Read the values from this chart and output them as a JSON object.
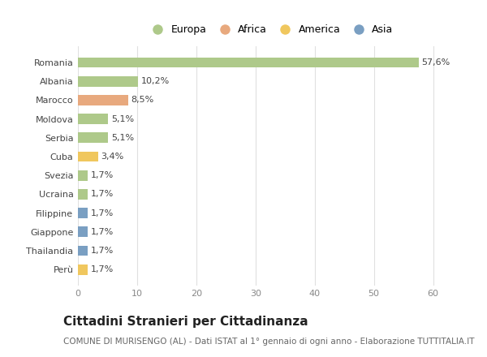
{
  "categories": [
    "Romania",
    "Albania",
    "Marocco",
    "Moldova",
    "Serbia",
    "Cuba",
    "Svezia",
    "Ucraina",
    "Filippine",
    "Giappone",
    "Thailandia",
    "Perù"
  ],
  "values": [
    57.6,
    10.2,
    8.5,
    5.1,
    5.1,
    3.4,
    1.7,
    1.7,
    1.7,
    1.7,
    1.7,
    1.7
  ],
  "labels": [
    "57,6%",
    "10,2%",
    "8,5%",
    "5,1%",
    "5,1%",
    "3,4%",
    "1,7%",
    "1,7%",
    "1,7%",
    "1,7%",
    "1,7%",
    "1,7%"
  ],
  "bar_colors": [
    "#aec98a",
    "#aec98a",
    "#e8a97e",
    "#aec98a",
    "#aec98a",
    "#f0c75e",
    "#aec98a",
    "#aec98a",
    "#7a9fc2",
    "#7a9fc2",
    "#7a9fc2",
    "#f0c75e"
  ],
  "legend_labels": [
    "Europa",
    "Africa",
    "America",
    "Asia"
  ],
  "legend_colors": [
    "#aec98a",
    "#e8a97e",
    "#f0c75e",
    "#7a9fc2"
  ],
  "xlim": [
    0,
    65
  ],
  "xticks": [
    0,
    10,
    20,
    30,
    40,
    50,
    60
  ],
  "title": "Cittadini Stranieri per Cittadinanza",
  "subtitle": "COMUNE DI MURISENGO (AL) - Dati ISTAT al 1° gennaio di ogni anno - Elaborazione TUTTITALIA.IT",
  "background_color": "#ffffff",
  "grid_color": "#e0e0e0",
  "bar_height": 0.55,
  "title_fontsize": 11,
  "subtitle_fontsize": 7.5,
  "label_fontsize": 8,
  "tick_fontsize": 8,
  "legend_fontsize": 9
}
